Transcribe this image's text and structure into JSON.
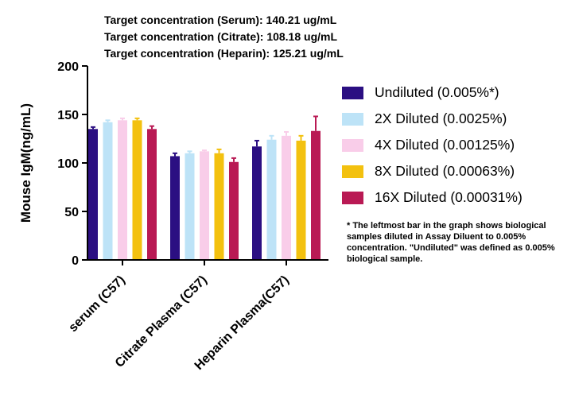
{
  "header": {
    "line1": {
      "prefix": "Target concentration (Serum): ",
      "value": "140.21 ug/mL"
    },
    "line2": {
      "prefix": "Target concentration (Citrate): ",
      "value": "108.18 ug/mL"
    },
    "line3": {
      "prefix": "Target concentration (Heparin): ",
      "value": "125.21 ug/mL"
    }
  },
  "note": "* The leftmost bar in the graph shows biological samples diluted in Assay Diluent to 0.005% concentration. \"Undiluted\" was defined as 0.005% biological sample.",
  "chart_data": {
    "type": "bar",
    "ylabel": "Mouse IgM(ng/mL)",
    "xlabel": "",
    "ylim": [
      0,
      200
    ],
    "yticks": [
      0,
      50,
      100,
      150,
      200
    ],
    "categories": [
      "serum (C57)",
      "Citrate Plasma (C57)",
      "Heparin Plasma(C57)"
    ],
    "series": [
      {
        "name": "Undiluted (0.005%*)",
        "color": "#2b0f82",
        "values": [
          135,
          107,
          117
        ],
        "errors": [
          2,
          3,
          6
        ]
      },
      {
        "name": "2X Diluted (0.0025%)",
        "color": "#bde3f7",
        "values": [
          142,
          110,
          124
        ],
        "errors": [
          2,
          2,
          4
        ]
      },
      {
        "name": "4X Diluted (0.00125%)",
        "color": "#f9cde9",
        "values": [
          144,
          112,
          128
        ],
        "errors": [
          2,
          1,
          4
        ]
      },
      {
        "name": "8X Diluted (0.00063%)",
        "color": "#f3c10f",
        "values": [
          144,
          110,
          123
        ],
        "errors": [
          2,
          4,
          5
        ]
      },
      {
        "name": "16X Diluted (0.00031%)",
        "color": "#b91a54",
        "values": [
          135,
          101,
          133
        ],
        "errors": [
          3,
          4,
          15
        ]
      }
    ],
    "legend_position": "right",
    "grid": false
  }
}
